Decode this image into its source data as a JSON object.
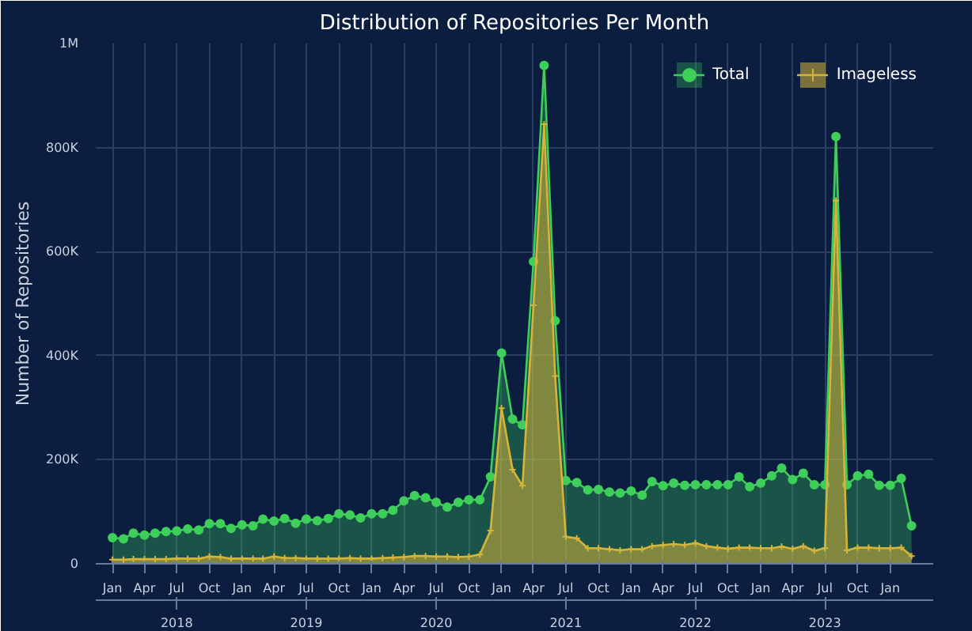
{
  "chart_data": {
    "type": "area",
    "title": "Distribution of Repositories Per Month",
    "ylabel": "Number of Repositories",
    "x": [
      "2018-01",
      "2018-02",
      "2018-03",
      "2018-04",
      "2018-05",
      "2018-06",
      "2018-07",
      "2018-08",
      "2018-09",
      "2018-10",
      "2018-11",
      "2018-12",
      "2019-01",
      "2019-02",
      "2019-03",
      "2019-04",
      "2019-05",
      "2019-06",
      "2019-07",
      "2019-08",
      "2019-09",
      "2019-10",
      "2019-11",
      "2019-12",
      "2020-01",
      "2020-02",
      "2020-03",
      "2020-04",
      "2020-05",
      "2020-06",
      "2020-07",
      "2020-08",
      "2020-09",
      "2020-10",
      "2020-11",
      "2020-12",
      "2021-01",
      "2021-02",
      "2021-03",
      "2021-04",
      "2021-05",
      "2021-06",
      "2021-07",
      "2021-08",
      "2021-09",
      "2021-10",
      "2021-11",
      "2021-12",
      "2022-01",
      "2022-02",
      "2022-03",
      "2022-04",
      "2022-05",
      "2022-06",
      "2022-07",
      "2022-08",
      "2022-09",
      "2022-10",
      "2022-11",
      "2022-12",
      "2023-01",
      "2023-02",
      "2023-03",
      "2023-04",
      "2023-05",
      "2023-06",
      "2023-07",
      "2023-08",
      "2023-09",
      "2023-10",
      "2023-11",
      "2023-12",
      "2024-01",
      "2024-02",
      "2024-03"
    ],
    "series": [
      {
        "name": "Total",
        "color": "#3ecf5a",
        "marker": "circle",
        "values": [
          50000,
          48000,
          59000,
          55000,
          59000,
          62000,
          63000,
          67000,
          65000,
          77000,
          77000,
          68000,
          75000,
          73000,
          86000,
          82000,
          87000,
          78000,
          86000,
          83000,
          87000,
          96000,
          94000,
          88000,
          96000,
          96000,
          103000,
          121000,
          131000,
          127000,
          118000,
          109000,
          118000,
          123000,
          123000,
          167000,
          405000,
          278000,
          267000,
          581000,
          958000,
          467000,
          160000,
          156000,
          142000,
          143000,
          138000,
          136000,
          140000,
          132000,
          158000,
          150000,
          155000,
          151000,
          152000,
          152000,
          152000,
          152000,
          167000,
          148000,
          155000,
          169000,
          184000,
          162000,
          174000,
          152000,
          152000,
          821000,
          152000,
          169000,
          172000,
          151000,
          151000,
          164000,
          73000
        ]
      },
      {
        "name": "Imageless",
        "color": "#d6b43a",
        "marker": "cross",
        "values": [
          8000,
          8000,
          9000,
          9000,
          9000,
          9000,
          10000,
          10000,
          10000,
          14000,
          13000,
          10000,
          10000,
          10000,
          10000,
          14000,
          11000,
          11000,
          10000,
          10000,
          10000,
          10000,
          11000,
          10000,
          10000,
          11000,
          12000,
          13000,
          15000,
          15000,
          14000,
          14000,
          13000,
          14000,
          18000,
          64000,
          299000,
          181000,
          150000,
          497000,
          845000,
          361000,
          52000,
          49000,
          30000,
          30000,
          28000,
          26000,
          28000,
          28000,
          34000,
          36000,
          38000,
          36000,
          40000,
          34000,
          31000,
          29000,
          31000,
          31000,
          30000,
          30000,
          33000,
          29000,
          34000,
          25000,
          30000,
          698000,
          26000,
          31000,
          31000,
          30000,
          30000,
          31000,
          15000
        ]
      }
    ],
    "xlim": [
      "2017-11-15",
      "2024-05-01"
    ],
    "xticks": [
      {
        "value": "2018-01",
        "label": "Jan"
      },
      {
        "value": "2018-04",
        "label": "Apr"
      },
      {
        "value": "2018-07",
        "label": "Jul"
      },
      {
        "value": "2018-10",
        "label": "Oct"
      },
      {
        "value": "2019-01",
        "label": "Jan"
      },
      {
        "value": "2019-04",
        "label": "Apr"
      },
      {
        "value": "2019-07",
        "label": "Jul"
      },
      {
        "value": "2019-10",
        "label": "Oct"
      },
      {
        "value": "2020-01",
        "label": "Jan"
      },
      {
        "value": "2020-04",
        "label": "Apr"
      },
      {
        "value": "2020-07",
        "label": "Jul"
      },
      {
        "value": "2020-10",
        "label": "Oct"
      },
      {
        "value": "2021-01",
        "label": "Jan"
      },
      {
        "value": "2021-04",
        "label": "Apr"
      },
      {
        "value": "2021-07",
        "label": "Jul"
      },
      {
        "value": "2021-10",
        "label": "Oct"
      },
      {
        "value": "2022-01",
        "label": "Jan"
      },
      {
        "value": "2022-04",
        "label": "Apr"
      },
      {
        "value": "2022-07",
        "label": "Jul"
      },
      {
        "value": "2022-10",
        "label": "Oct"
      },
      {
        "value": "2023-01",
        "label": "Jan"
      },
      {
        "value": "2023-04",
        "label": "Apr"
      },
      {
        "value": "2023-07",
        "label": "Jul"
      },
      {
        "value": "2023-10",
        "label": "Oct"
      },
      {
        "value": "2024-01",
        "label": "Jan"
      }
    ],
    "x2lim": [
      "2017-11-15",
      "2024-05-01"
    ],
    "x2ticks": [
      {
        "value": "2018-07-01",
        "label": "2018"
      },
      {
        "value": "2019-07-01",
        "label": "2019"
      },
      {
        "value": "2020-07-01",
        "label": "2020"
      },
      {
        "value": "2021-07-01",
        "label": "2021"
      },
      {
        "value": "2022-07-01",
        "label": "2022"
      },
      {
        "value": "2023-07-01",
        "label": "2023"
      }
    ],
    "ylim": [
      0,
      1000000
    ],
    "yticks": [
      0,
      {
        "value": 200000,
        "label": "200K"
      },
      {
        "value": 400000,
        "label": "400K"
      },
      {
        "value": 600000,
        "label": "600K"
      },
      {
        "value": 800000,
        "label": "800K"
      },
      {
        "value": 1000000,
        "label": "1M"
      }
    ],
    "grid": true,
    "legend": "top right"
  }
}
